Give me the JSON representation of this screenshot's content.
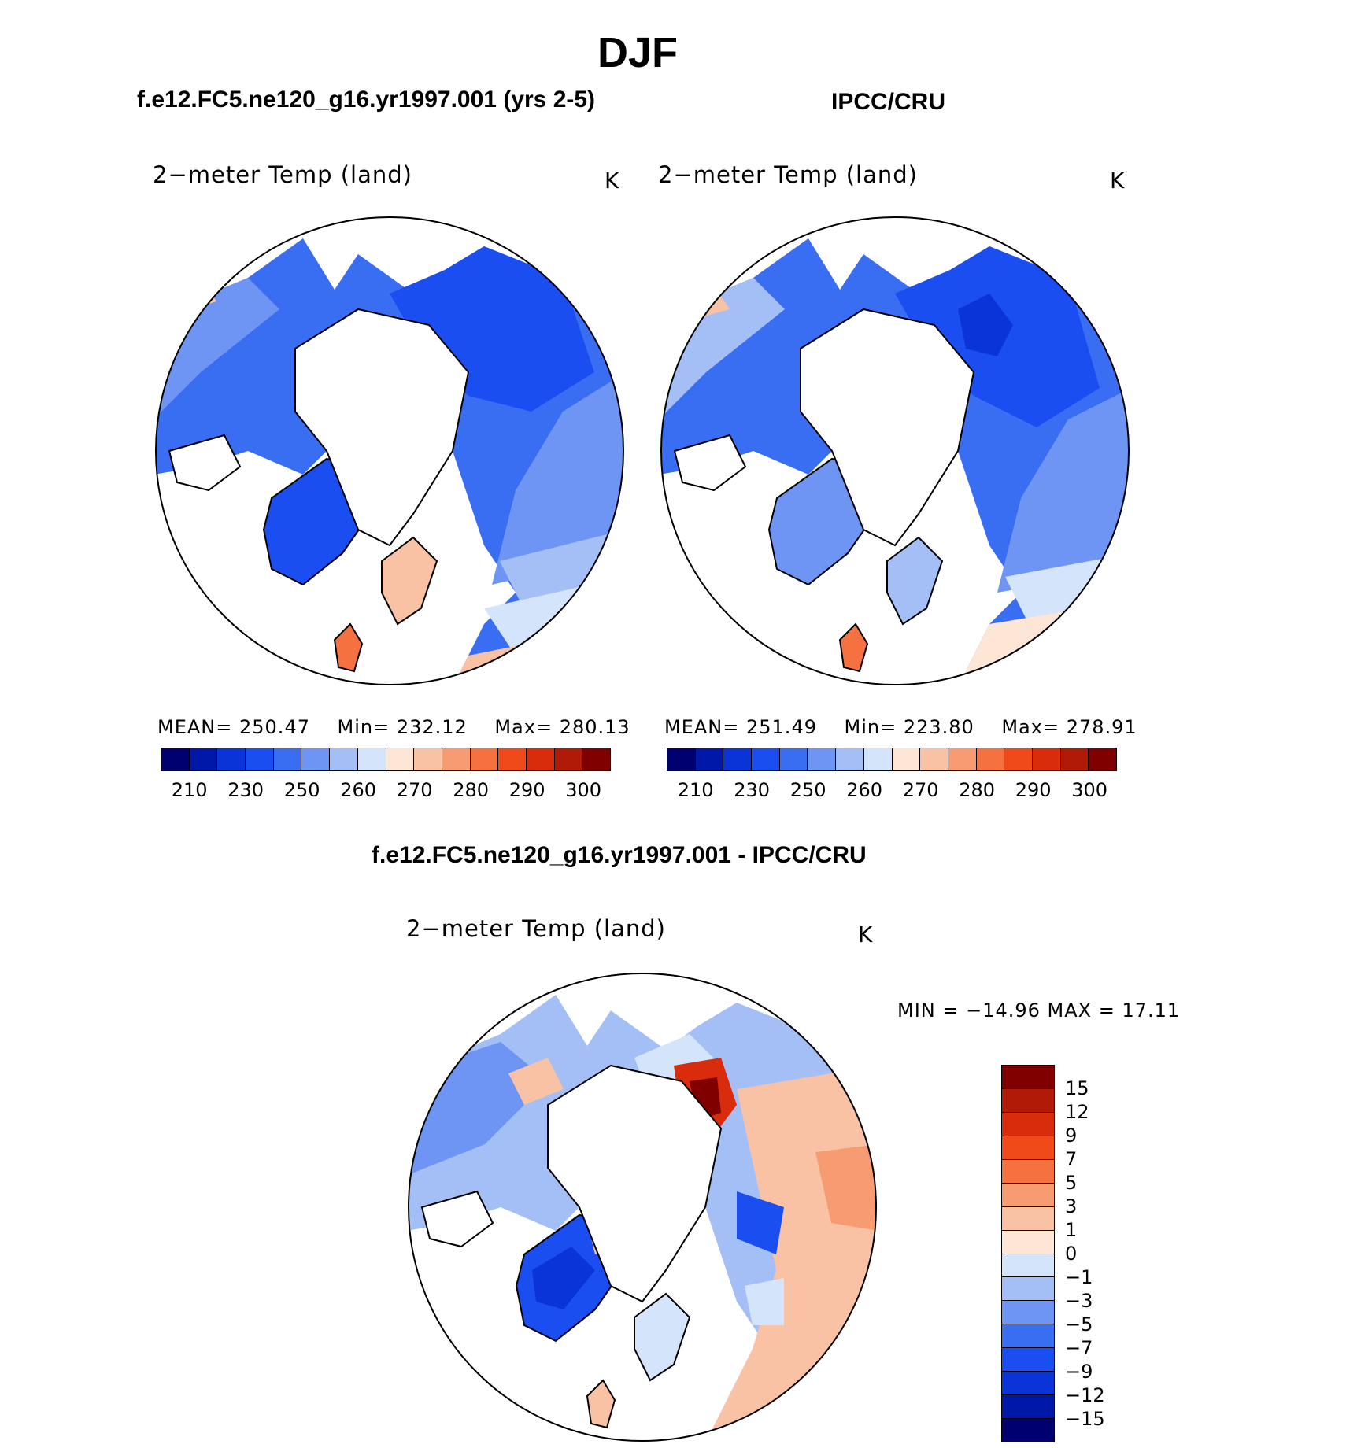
{
  "title": "DJF",
  "panels": {
    "model": {
      "header": "f.e12.FC5.ne120_g16.yr1997.001 (yrs 2-5)",
      "label": "2−meter Temp (land)",
      "unit": "K",
      "stats": {
        "mean_label": "MEAN=",
        "mean": "250.47",
        "min_label": "Min=",
        "min": "232.12",
        "max_label": "Max=",
        "max": "280.13"
      }
    },
    "obs": {
      "header": "IPCC/CRU",
      "label": "2−meter Temp (land)",
      "unit": "K",
      "stats": {
        "mean_label": "MEAN=",
        "mean": "251.49",
        "min_label": "Min=",
        "min": "223.80",
        "max_label": "Max=",
        "max": "278.91"
      }
    },
    "diff": {
      "header": "f.e12.FC5.ne120_g16.yr1997.001 - IPCC/CRU",
      "label": "2−meter Temp (land)",
      "unit": "K",
      "minmax": "MIN = −14.96 MAX =   17.11"
    }
  },
  "colorbar_abs": {
    "ticks": [
      "210",
      "230",
      "250",
      "260",
      "270",
      "280",
      "290",
      "300"
    ],
    "colors": [
      "#000070",
      "#0018a8",
      "#0a34d8",
      "#1a4ef0",
      "#3a6ef2",
      "#6e95f3",
      "#a3bff6",
      "#d4e4fa",
      "#fde6d6",
      "#f9c2a4",
      "#f79b72",
      "#f57240",
      "#f04a1a",
      "#d82c0c",
      "#b01a06",
      "#800000"
    ]
  },
  "colorbar_diff": {
    "ticks": [
      "15",
      "12",
      "9",
      "7",
      "5",
      "3",
      "1",
      "0",
      "−1",
      "−3",
      "−5",
      "−7",
      "−9",
      "−12",
      "−15"
    ],
    "colors": [
      "#800000",
      "#b01a06",
      "#d82c0c",
      "#f04a1a",
      "#f57240",
      "#f79b72",
      "#f9c2a4",
      "#fde6d6",
      "#d4e4fa",
      "#a3bff6",
      "#6e95f3",
      "#3a6ef2",
      "#1a4ef0",
      "#0a34d8",
      "#0018a8",
      "#000070"
    ]
  }
}
